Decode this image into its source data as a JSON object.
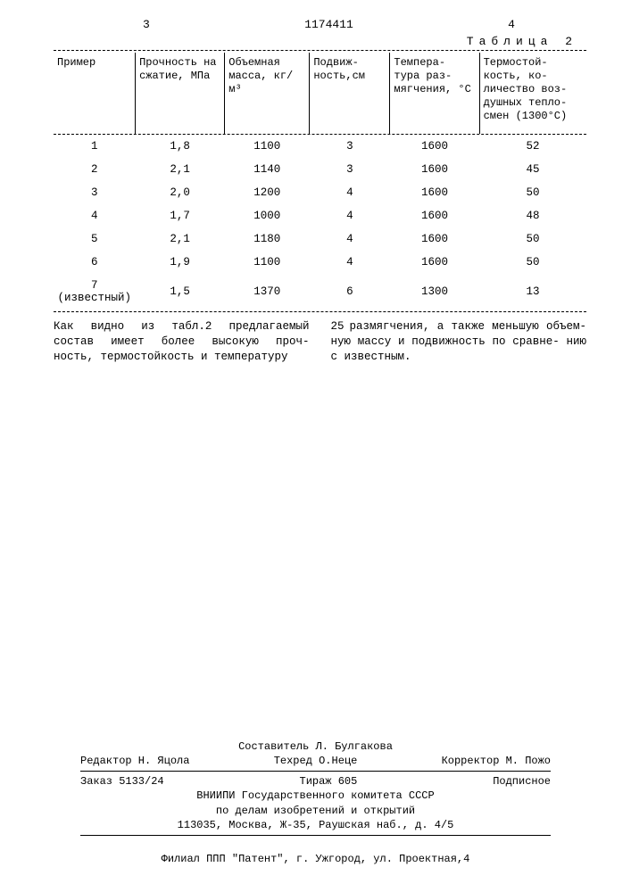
{
  "header": {
    "left_page": "3",
    "patent_no": "1174411",
    "right_page": "4"
  },
  "table": {
    "label": "Таблица 2",
    "columns": [
      "Пример",
      "Прочность на сжатие, МПа",
      "Объемная масса, кг/м³",
      "Подвиж-\nность,см",
      "Темпера-\nтура раз-\nмягчения, °С",
      "Термостой-\nкость, ко-\nличество воз-\nдушных тепло-\nсмен (1300°С)"
    ],
    "rows": [
      [
        "1",
        "1,8",
        "1100",
        "3",
        "1600",
        "52"
      ],
      [
        "2",
        "2,1",
        "1140",
        "3",
        "1600",
        "45"
      ],
      [
        "3",
        "2,0",
        "1200",
        "4",
        "1600",
        "50"
      ],
      [
        "4",
        "1,7",
        "1000",
        "4",
        "1600",
        "48"
      ],
      [
        "5",
        "2,1",
        "1180",
        "4",
        "1600",
        "50"
      ],
      [
        "6",
        "1,9",
        "1100",
        "4",
        "1600",
        "50"
      ],
      [
        "7 (известный)",
        "1,5",
        "1370",
        "6",
        "1300",
        "13"
      ]
    ]
  },
  "body": {
    "line_marker": "25",
    "left": "Как видно из табл.2 предлагаемый состав имеет более высокую проч-\nность, термостойкость и температуру",
    "right": "размягчения, а также меньшую объем-\nную массу и подвижность по сравне-\nнию с известным."
  },
  "footer": {
    "compiler": "Составитель Л. Булгакова",
    "editor": "Редактор Н. Яцола",
    "tech": "Техред О.Неце",
    "corrector": "Корректор М. Пожо",
    "order": "Заказ 5133/24",
    "tirazh": "Тираж 605",
    "subscription": "Подписное",
    "org1": "ВНИИПИ Государственного комитета СССР",
    "org2": "по делам изобретений и открытий",
    "address": "113035, Москва, Ж-35, Раушская наб., д. 4/5",
    "branch": "Филиал ППП \"Патент\", г. Ужгород, ул. Проектная,4"
  }
}
